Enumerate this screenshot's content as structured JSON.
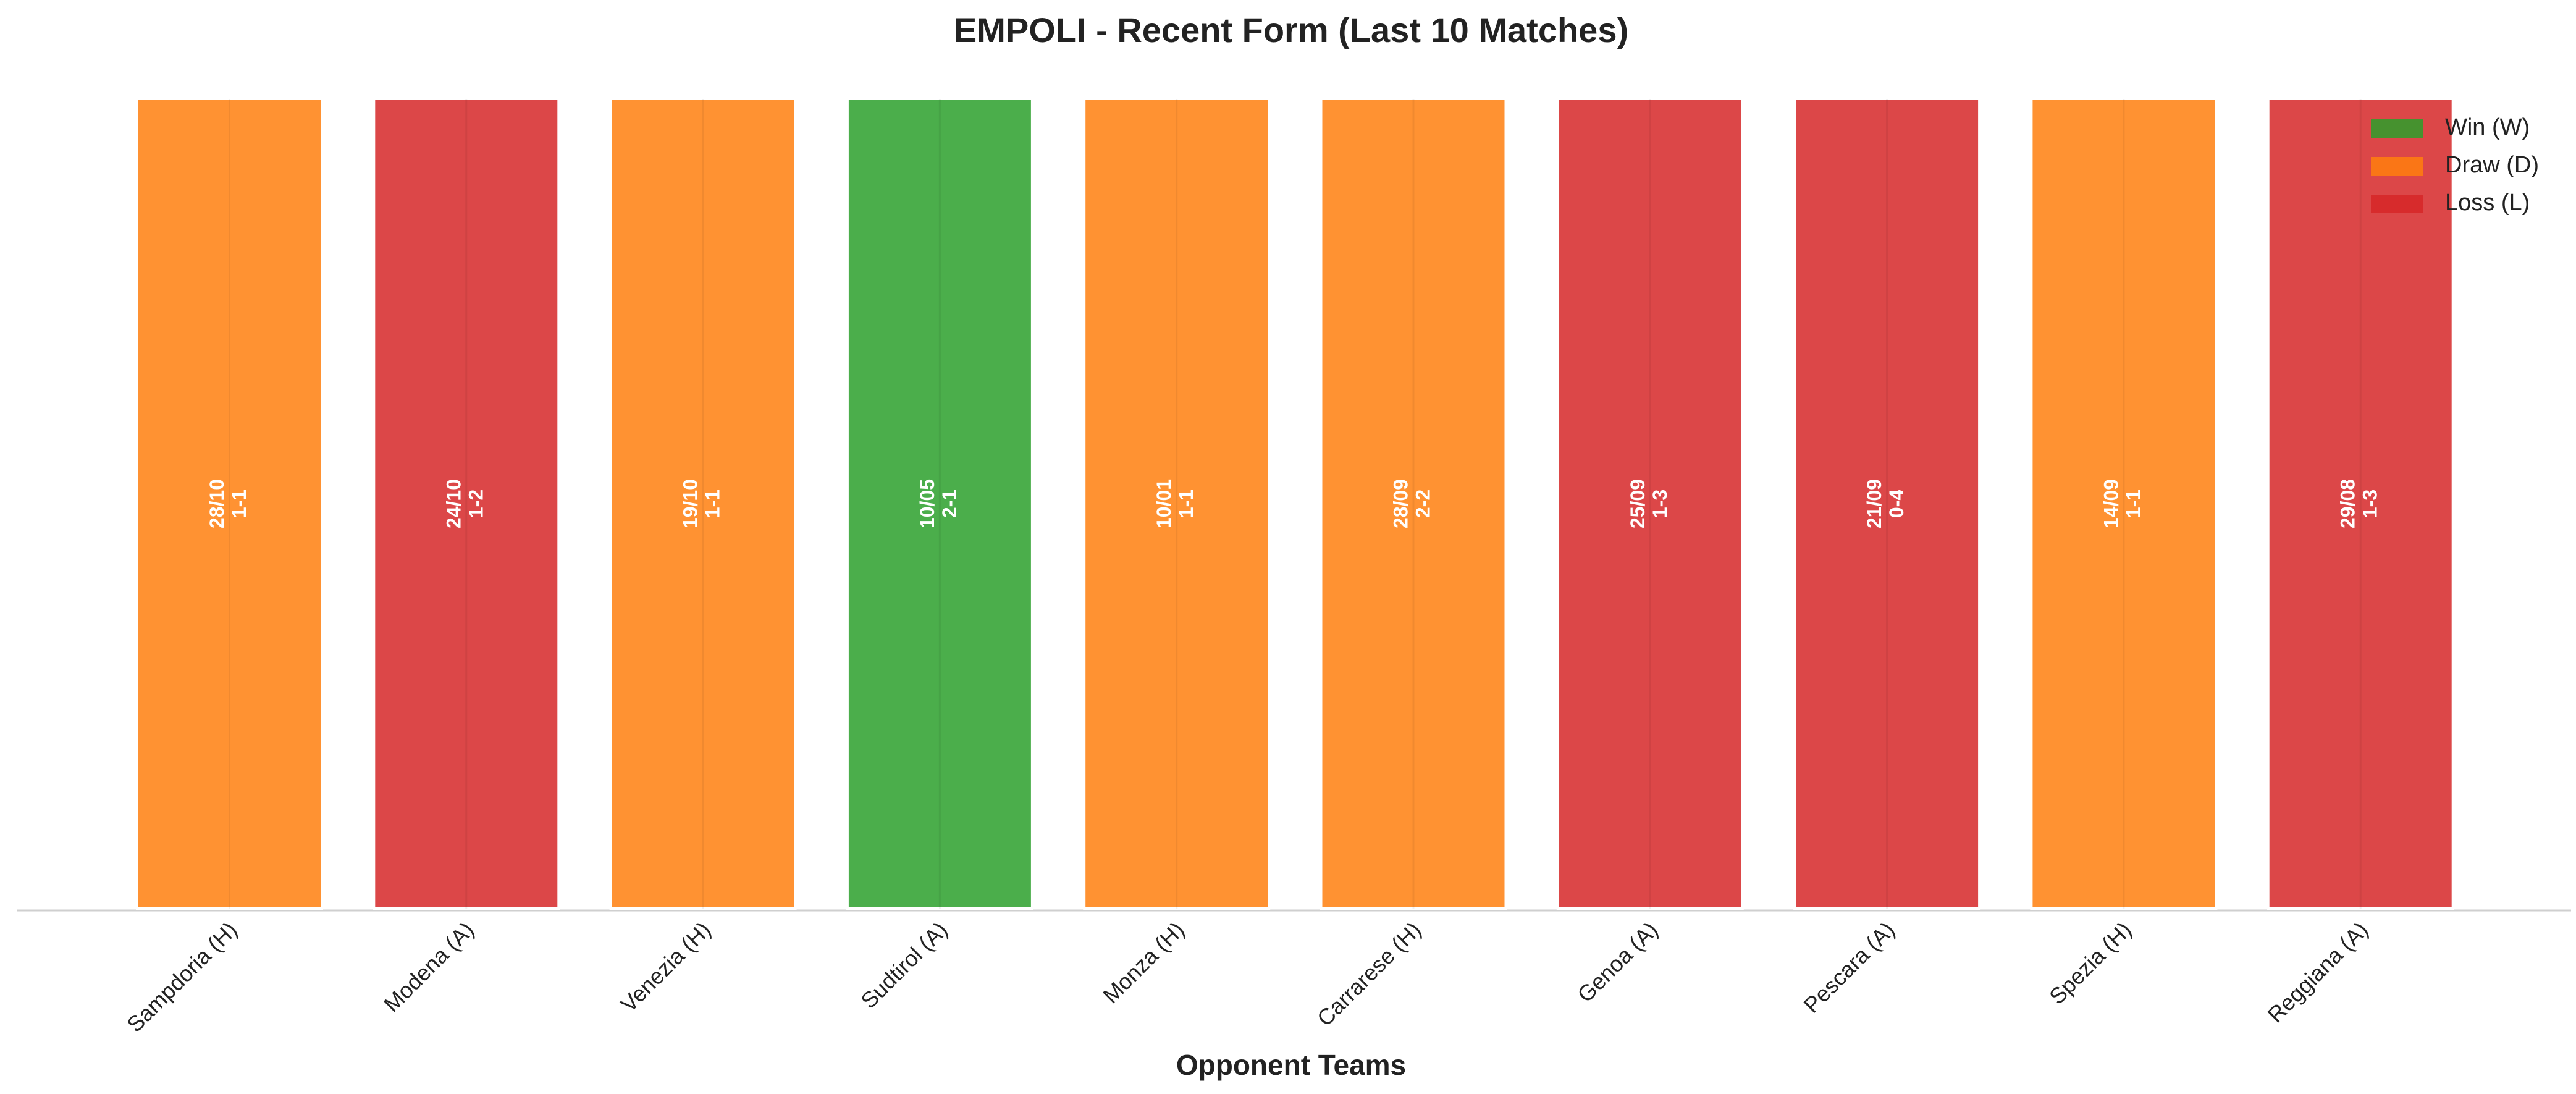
{
  "chart_data": {
    "type": "form",
    "title": "EMPOLI - Recent Form (Last 10 Matches)",
    "x_label": "Opponent Teams",
    "categories": [
      "Sampdoria (H)",
      "Modena (A)",
      "Venezia (H)",
      "Sudtirol (A)",
      "Monza (H)",
      "Carrarese (H)",
      "Genoa (A)",
      "Pescara (A)",
      "Spezia (H)",
      "Reggiana (A)"
    ],
    "dates": [
      "28/10",
      "24/10",
      "19/10",
      "10/05",
      "10/01",
      "28/09",
      "25/09",
      "21/09",
      "14/09",
      "29/08"
    ],
    "scores": [
      "1-1",
      "1-2",
      "1-1",
      "2-1",
      "1-1",
      "2-2",
      "1-3",
      "0-4",
      "1-1",
      "1-3"
    ],
    "results": [
      "D",
      "L",
      "D",
      "W",
      "D",
      "D",
      "L",
      "L",
      "D",
      "L"
    ],
    "outcomes": [
      {
        "code": "W",
        "label": "Win (W)",
        "color": "#2ca02c"
      },
      {
        "code": "D",
        "label": "Draw (D)",
        "color": "#ff7f0e"
      },
      {
        "code": "L",
        "label": "Loss (L)",
        "color": "#d62728"
      }
    ],
    "legend": "upper right"
  }
}
